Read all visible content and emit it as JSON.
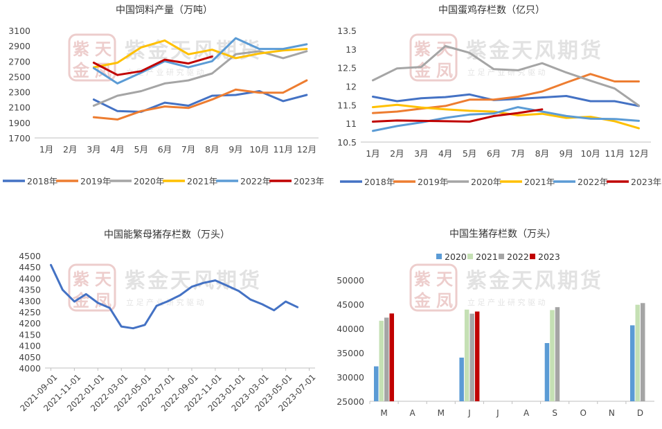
{
  "watermark": {
    "brand": "紫金天风期货",
    "slogan": "立 足 产 业   研 究 驱 动",
    "seal": "紫天金凤"
  },
  "chart_data": [
    {
      "id": "feed",
      "type": "line",
      "title": "中国饲料产量（万吨）",
      "categories": [
        "1月",
        "2月",
        "3月",
        "4月",
        "5月",
        "6月",
        "7月",
        "8月",
        "9月",
        "10月",
        "11月",
        "12月"
      ],
      "ylim": [
        1700,
        3100
      ],
      "yticks": [
        1700,
        1900,
        2100,
        2300,
        2500,
        2700,
        2900,
        3100
      ],
      "legend": "bottom",
      "series": [
        {
          "name": "2018年",
          "color": "#4472C4",
          "values": [
            null,
            null,
            2200,
            2050,
            2040,
            2160,
            2120,
            2250,
            2260,
            2310,
            2180,
            2260
          ]
        },
        {
          "name": "2019年",
          "color": "#ED7D31",
          "values": [
            null,
            null,
            1970,
            1940,
            2050,
            2110,
            2090,
            2200,
            2330,
            2290,
            2290,
            2450
          ]
        },
        {
          "name": "2020年",
          "color": "#A5A5A5",
          "values": [
            null,
            null,
            2120,
            2250,
            2310,
            2410,
            2450,
            2540,
            2790,
            2830,
            2740,
            2830
          ]
        },
        {
          "name": "2021年",
          "color": "#FFC000",
          "values": [
            null,
            null,
            2620,
            2680,
            2880,
            2970,
            2790,
            2850,
            2740,
            2800,
            2840,
            2860
          ]
        },
        {
          "name": "2022年",
          "color": "#5B9BD5",
          "values": [
            null,
            null,
            2610,
            2410,
            2550,
            2700,
            2620,
            2700,
            3000,
            2860,
            2860,
            2920
          ]
        },
        {
          "name": "2023年",
          "color": "#C00000",
          "values": [
            null,
            null,
            2680,
            2520,
            2570,
            2720,
            2670,
            2760,
            null,
            null,
            null,
            null
          ]
        }
      ]
    },
    {
      "id": "layer",
      "type": "line",
      "title": "中国蛋鸡存栏数（亿只）",
      "categories": [
        "1月",
        "2月",
        "3月",
        "4月",
        "5月",
        "6月",
        "7月",
        "8月",
        "9月",
        "10月",
        "11月",
        "12月"
      ],
      "ylim": [
        10.5,
        13.5
      ],
      "yticks": [
        10.5,
        11,
        11.5,
        12,
        12.5,
        13,
        13.5
      ],
      "legend": "bottom",
      "series": [
        {
          "name": "2018年",
          "color": "#4472C4",
          "values": [
            11.72,
            11.6,
            11.68,
            11.71,
            11.78,
            11.63,
            11.66,
            11.7,
            11.74,
            11.6,
            11.6,
            11.47
          ]
        },
        {
          "name": "2019年",
          "color": "#ED7D31",
          "values": [
            11.28,
            11.32,
            11.4,
            11.47,
            11.64,
            11.64,
            11.72,
            11.86,
            12.1,
            12.33,
            12.13,
            12.13
          ]
        },
        {
          "name": "2020年",
          "color": "#A5A5A5",
          "values": [
            12.16,
            12.48,
            12.52,
            13.08,
            12.9,
            12.46,
            12.43,
            12.62,
            12.37,
            12.15,
            11.94,
            11.48
          ]
        },
        {
          "name": "2021年",
          "color": "#FFC000",
          "values": [
            11.44,
            11.5,
            11.43,
            11.38,
            11.34,
            11.32,
            11.22,
            11.26,
            11.15,
            11.18,
            11.06,
            10.87
          ]
        },
        {
          "name": "2022年",
          "color": "#5B9BD5",
          "values": [
            10.8,
            10.93,
            11.03,
            11.15,
            11.24,
            11.27,
            11.44,
            11.32,
            11.2,
            11.13,
            11.12,
            11.07
          ]
        },
        {
          "name": "2023年",
          "color": "#C00000",
          "values": [
            11.05,
            11.08,
            11.07,
            11.06,
            11.05,
            11.2,
            11.28,
            11.38,
            null,
            null,
            null,
            null
          ]
        }
      ]
    },
    {
      "id": "sow",
      "type": "line",
      "title": "中国能繁母猪存栏数（万头）",
      "categories": [
        "2021-09-01",
        "2021-10-01",
        "2021-11-01",
        "2021-12-01",
        "2022-01-01",
        "2022-02-01",
        "2022-03-01",
        "2022-04-01",
        "2022-05-01",
        "2022-06-01",
        "2022-07-01",
        "2022-08-01",
        "2022-09-01",
        "2022-10-01",
        "2022-11-01",
        "2022-12-01",
        "2023-01-01",
        "2023-02-01",
        "2023-03-01",
        "2023-04-01",
        "2023-05-01",
        "2023-06-01",
        "2023-07-01"
      ],
      "xticks": [
        "2021-09-01",
        "2021-11-01",
        "2022-01-01",
        "2022-03-01",
        "2022-05-01",
        "2022-07-01",
        "2022-09-01",
        "2022-11-01",
        "2023-01-01",
        "2023-03-01",
        "2023-05-01",
        "2023-07-01"
      ],
      "ylim": [
        4000,
        4500
      ],
      "yticks": [
        4000,
        4050,
        4100,
        4150,
        4200,
        4250,
        4300,
        4350,
        4400,
        4450,
        4500
      ],
      "series": [
        {
          "color": "#4472C4",
          "values": [
            4459,
            4348,
            4296,
            4329,
            4290,
            4268,
            4185,
            4177,
            4192,
            4277,
            4298,
            4324,
            4362,
            4379,
            4390,
            4367,
            4343,
            4305,
            4284,
            4257,
            4296,
            4271,
            null
          ]
        }
      ]
    },
    {
      "id": "hog",
      "type": "bar",
      "title": "中国生猪存栏数（万头）",
      "categories": [
        "M",
        "A",
        "M",
        "J",
        "J",
        "A",
        "S",
        "O",
        "N",
        "D"
      ],
      "ylim": [
        25000,
        50000
      ],
      "yticks": [
        25000,
        30000,
        35000,
        40000,
        45000,
        50000
      ],
      "legend": "top",
      "series": [
        {
          "name": "2020",
          "color": "#5B9BD5",
          "values": [
            32200,
            null,
            null,
            34000,
            null,
            null,
            37000,
            null,
            null,
            40650
          ]
        },
        {
          "name": "2021",
          "color": "#C5E0B4",
          "values": [
            41600,
            null,
            null,
            43900,
            null,
            null,
            43800,
            null,
            null,
            44900
          ]
        },
        {
          "name": "2022",
          "color": "#A5A5A5",
          "values": [
            42250,
            null,
            null,
            43050,
            null,
            null,
            44400,
            null,
            null,
            45250
          ]
        },
        {
          "name": "2023",
          "color": "#C00000",
          "values": [
            43100,
            null,
            null,
            43500,
            null,
            null,
            null,
            null,
            null,
            null
          ]
        }
      ]
    }
  ]
}
